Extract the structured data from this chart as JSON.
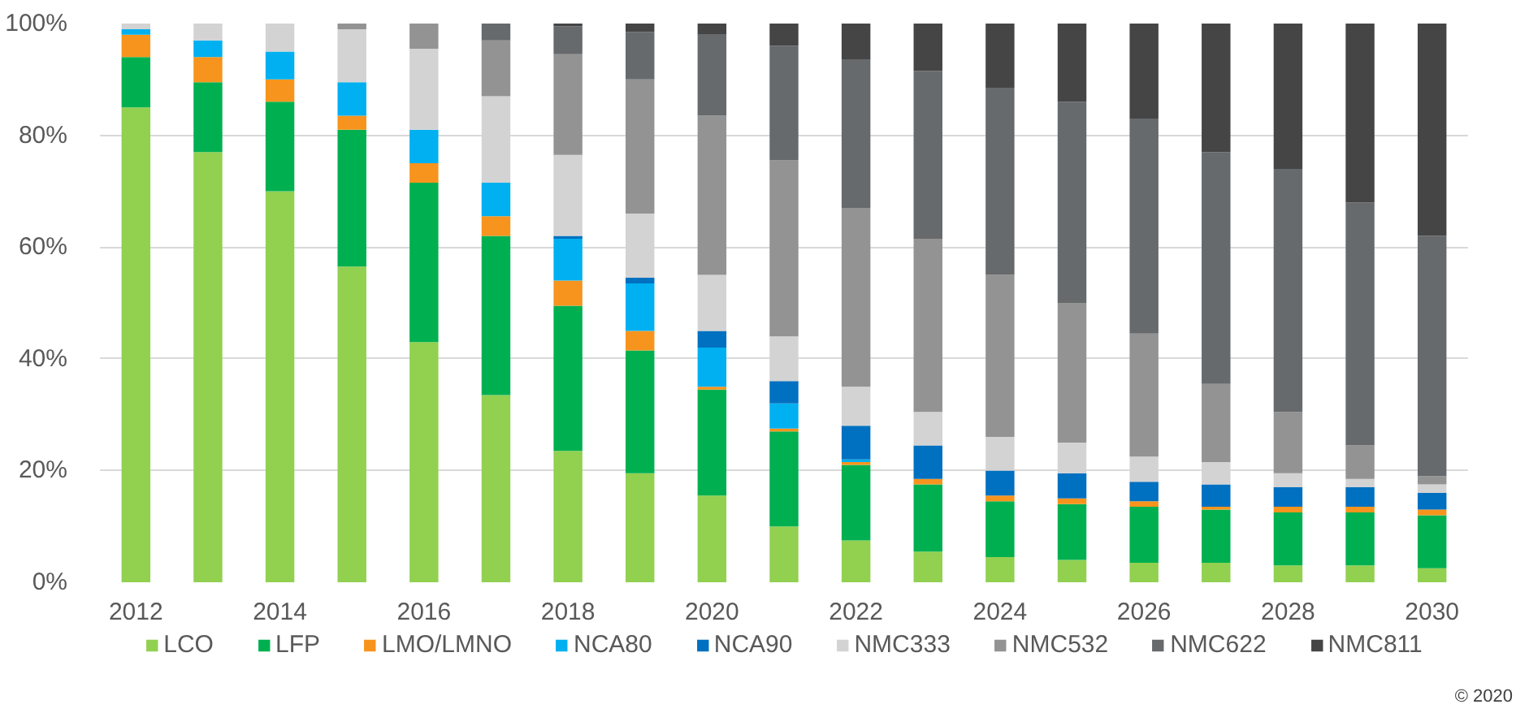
{
  "chart_data": {
    "type": "bar",
    "stacked": true,
    "categories": [
      "2012",
      null,
      "2014",
      null,
      "2016",
      null,
      "2018",
      null,
      "2020",
      null,
      "2022",
      null,
      "2024",
      null,
      "2026",
      null,
      "2028",
      null,
      "2030"
    ],
    "series": [
      {
        "name": "LCO",
        "color": "#92d050",
        "values": [
          85,
          77,
          70,
          56.5,
          43,
          33.5,
          23.5,
          19.5,
          15.5,
          10,
          7.5,
          5.5,
          4.5,
          4,
          3.5,
          3.5,
          3,
          3,
          2.5
        ]
      },
      {
        "name": "LFP",
        "color": "#00b050",
        "values": [
          9,
          12.5,
          16,
          24.5,
          28.5,
          28.5,
          26,
          22,
          19,
          17,
          13.5,
          12,
          10,
          10,
          10,
          9.5,
          9.5,
          9.5,
          9.5
        ]
      },
      {
        "name": "LMO/LMNO",
        "color": "#f7941d",
        "values": [
          4,
          4.5,
          4,
          2.5,
          3.5,
          3.5,
          4.5,
          3.5,
          0.5,
          0.5,
          0.5,
          1,
          1,
          1,
          1,
          0.5,
          1,
          1,
          1
        ]
      },
      {
        "name": "NCA80",
        "color": "#00b0f0",
        "values": [
          1,
          3,
          5,
          6,
          6,
          6,
          7.5,
          8.5,
          7,
          4.5,
          0.5,
          0,
          0,
          0,
          0,
          0,
          0,
          0,
          0
        ]
      },
      {
        "name": "NCA90",
        "color": "#0070c0",
        "values": [
          0,
          0,
          0,
          0,
          0,
          0,
          0.5,
          1,
          3,
          4,
          6,
          6,
          4.5,
          4.5,
          3.5,
          4,
          3.5,
          3.5,
          3
        ]
      },
      {
        "name": "NMC333",
        "color": "#d3d3d3",
        "values": [
          1,
          3,
          5,
          9.5,
          14.5,
          15.5,
          14.5,
          11.5,
          10,
          8,
          7,
          6,
          6,
          5.5,
          4.5,
          4,
          2.5,
          1.5,
          1.5
        ]
      },
      {
        "name": "NMC532",
        "color": "#939393",
        "values": [
          0,
          0,
          0,
          1,
          4.5,
          10,
          18,
          24,
          28.5,
          31.5,
          32,
          31,
          29,
          25,
          22,
          14,
          11,
          6,
          1.5
        ]
      },
      {
        "name": "NMC622",
        "color": "#676a6c",
        "values": [
          0,
          0,
          0,
          0,
          0,
          3,
          5,
          8.5,
          14.5,
          20.5,
          26.5,
          30,
          33.5,
          36,
          38.5,
          41.5,
          43.5,
          43.5,
          43
        ]
      },
      {
        "name": "NMC811",
        "color": "#454545",
        "values": [
          0,
          0,
          0,
          0,
          0,
          0,
          0.5,
          1.5,
          2,
          4,
          6.5,
          8.5,
          11.5,
          14,
          17,
          23,
          26,
          32,
          38
        ]
      }
    ],
    "ylim": [
      0,
      100
    ],
    "yticks": [
      {
        "value": 0,
        "label": "0%"
      },
      {
        "value": 20,
        "label": "20%"
      },
      {
        "value": 40,
        "label": "40%"
      },
      {
        "value": 60,
        "label": "60%"
      },
      {
        "value": 80,
        "label": "80%"
      },
      {
        "value": 100,
        "label": "100%"
      }
    ],
    "grid": "y",
    "legend": "bottom",
    "annotations": [
      "© 2020"
    ]
  }
}
